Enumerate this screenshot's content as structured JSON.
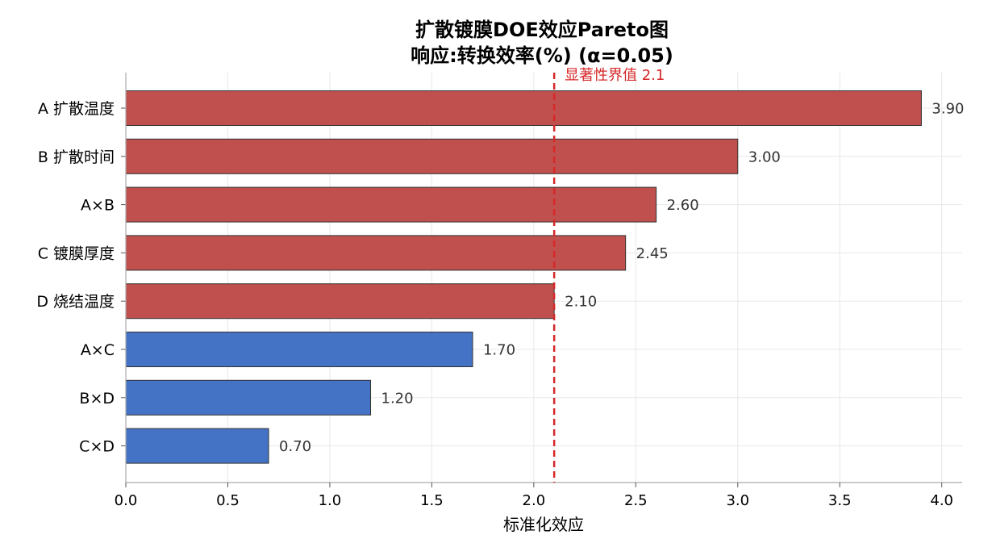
{
  "chart_data": {
    "type": "bar",
    "orientation": "horizontal",
    "title": "扩散镀膜DOE效应Pareto图",
    "subtitle": "响应:转换效率(%)  (α=0.05)",
    "xlabel": "标准化效应",
    "ylabel": "",
    "categories": [
      "A 扩散温度",
      "B 扩散时间",
      "A×B",
      "C 镀膜厚度",
      "D 烧结温度",
      "A×C",
      "B×D",
      "C×D"
    ],
    "values": [
      3.9,
      3.0,
      2.6,
      2.45,
      2.1,
      1.7,
      1.2,
      0.7
    ],
    "value_labels": [
      "3.90",
      "3.00",
      "2.60",
      "2.45",
      "2.10",
      "1.70",
      "1.20",
      "0.70"
    ],
    "xlim": [
      0,
      4.1
    ],
    "xticks": [
      0,
      0.5,
      1.0,
      1.5,
      2.0,
      2.5,
      3.0,
      3.5,
      4.0
    ],
    "xtick_labels": [
      "0.0",
      "0.5",
      "1.0",
      "1.5",
      "2.0",
      "2.5",
      "3.0",
      "3.5",
      "4.0"
    ],
    "grid": true,
    "threshold": {
      "value": 2.1,
      "label": "显著性界值 2.1",
      "color": "#d62728",
      "style": "dashed"
    },
    "colors": {
      "significant": "#c0504d",
      "not_significant": "#4472c4",
      "edge": "#333333",
      "grid": "#e8e8e8",
      "axis": "#aaaaaa"
    }
  }
}
